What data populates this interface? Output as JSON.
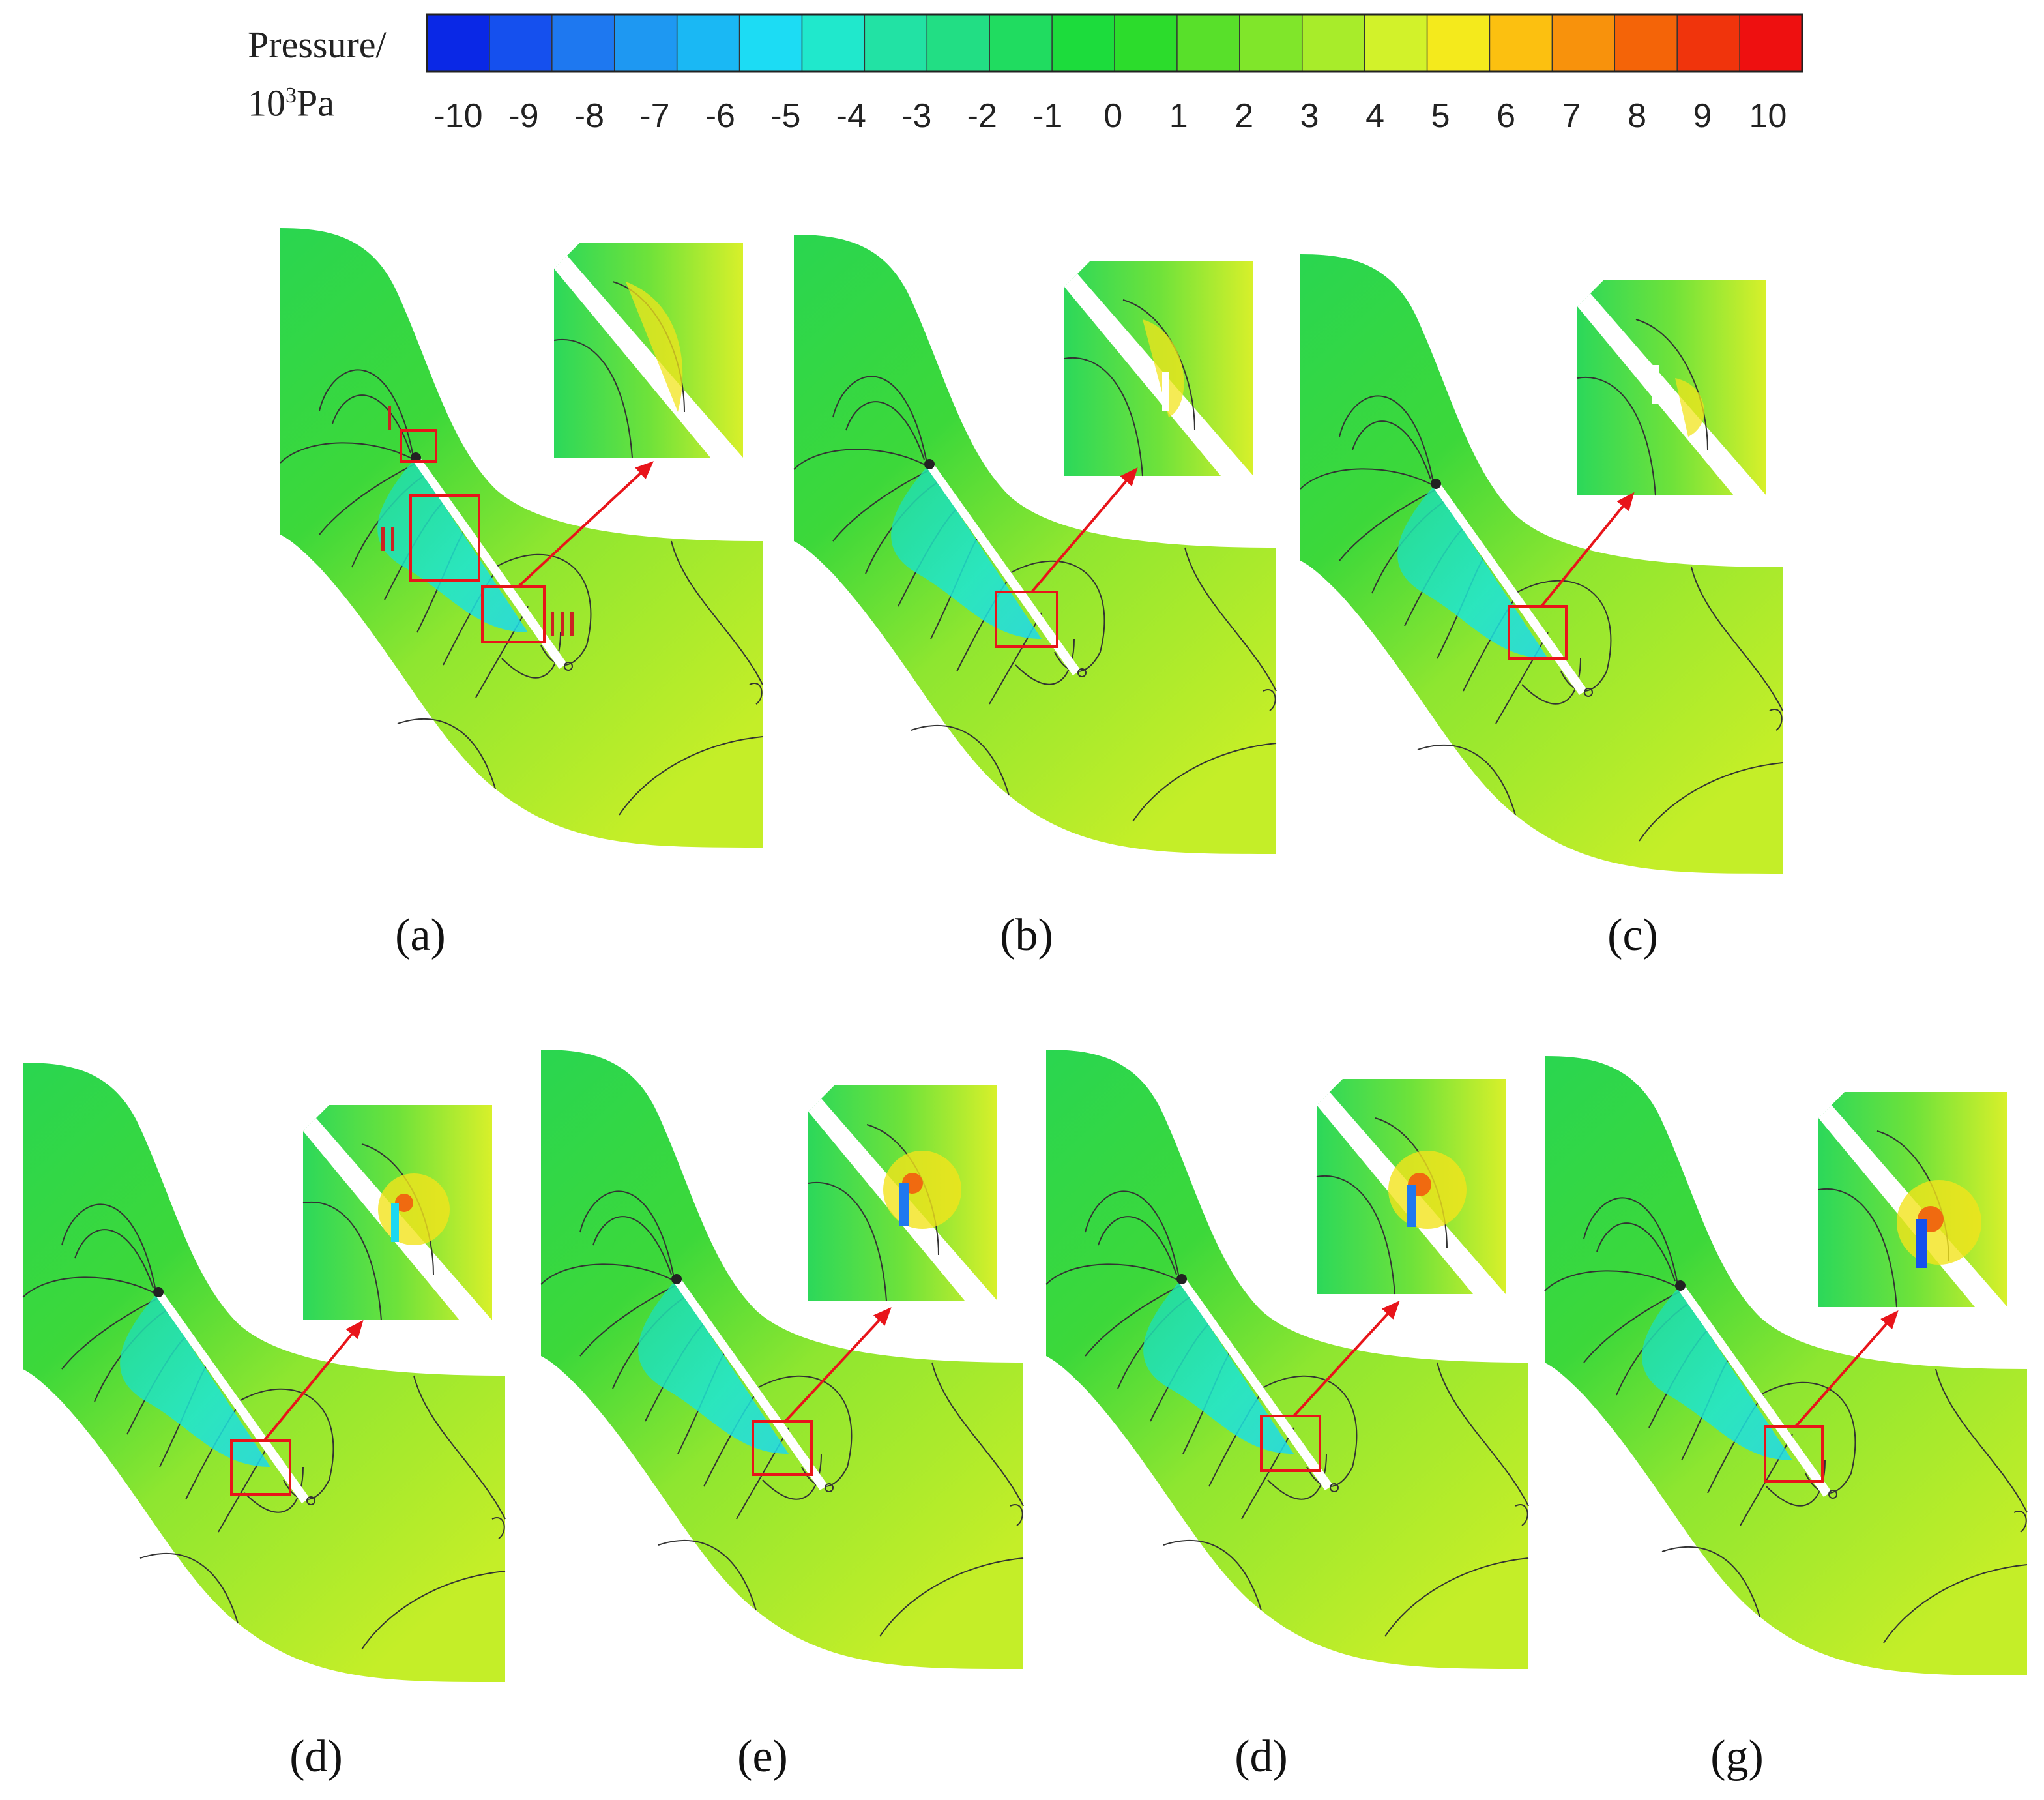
{
  "legend": {
    "title_line1": "Pressure/",
    "title_line2_base": "10",
    "title_line2_exp": "3",
    "title_line2_unit": "Pa",
    "ticks": [
      "-10",
      "-9",
      "-8",
      "-7",
      "-6",
      "-5",
      "-4",
      "-3",
      "-2",
      "-1",
      "0",
      "1",
      "2",
      "3",
      "4",
      "5",
      "6",
      "7",
      "8",
      "9",
      "10"
    ],
    "colors": [
      "#0a28e6",
      "#1550ee",
      "#1e78f0",
      "#1e98f2",
      "#1ab8f4",
      "#1cdcf4",
      "#20e8cc",
      "#22e2a4",
      "#22de84",
      "#20dc60",
      "#1cdc3c",
      "#2cdc2c",
      "#58e02a",
      "#80e62a",
      "#a8ec2a",
      "#d2f22a",
      "#f4ea1c",
      "#fcc010",
      "#f8920c",
      "#f46408",
      "#f0340c",
      "#ee1010"
    ]
  },
  "panel_labels": {
    "a": "(a)",
    "b": "(b)",
    "c": "(c)",
    "d1": "(d)",
    "e": "(e)",
    "d2": "(d)",
    "g": "(g)"
  },
  "region_labels": {
    "r1": "I",
    "r2": "II",
    "r3": "III"
  },
  "colors": {
    "arrow": "#e8141a",
    "box": "#e8141a",
    "contour": "#333333"
  }
}
